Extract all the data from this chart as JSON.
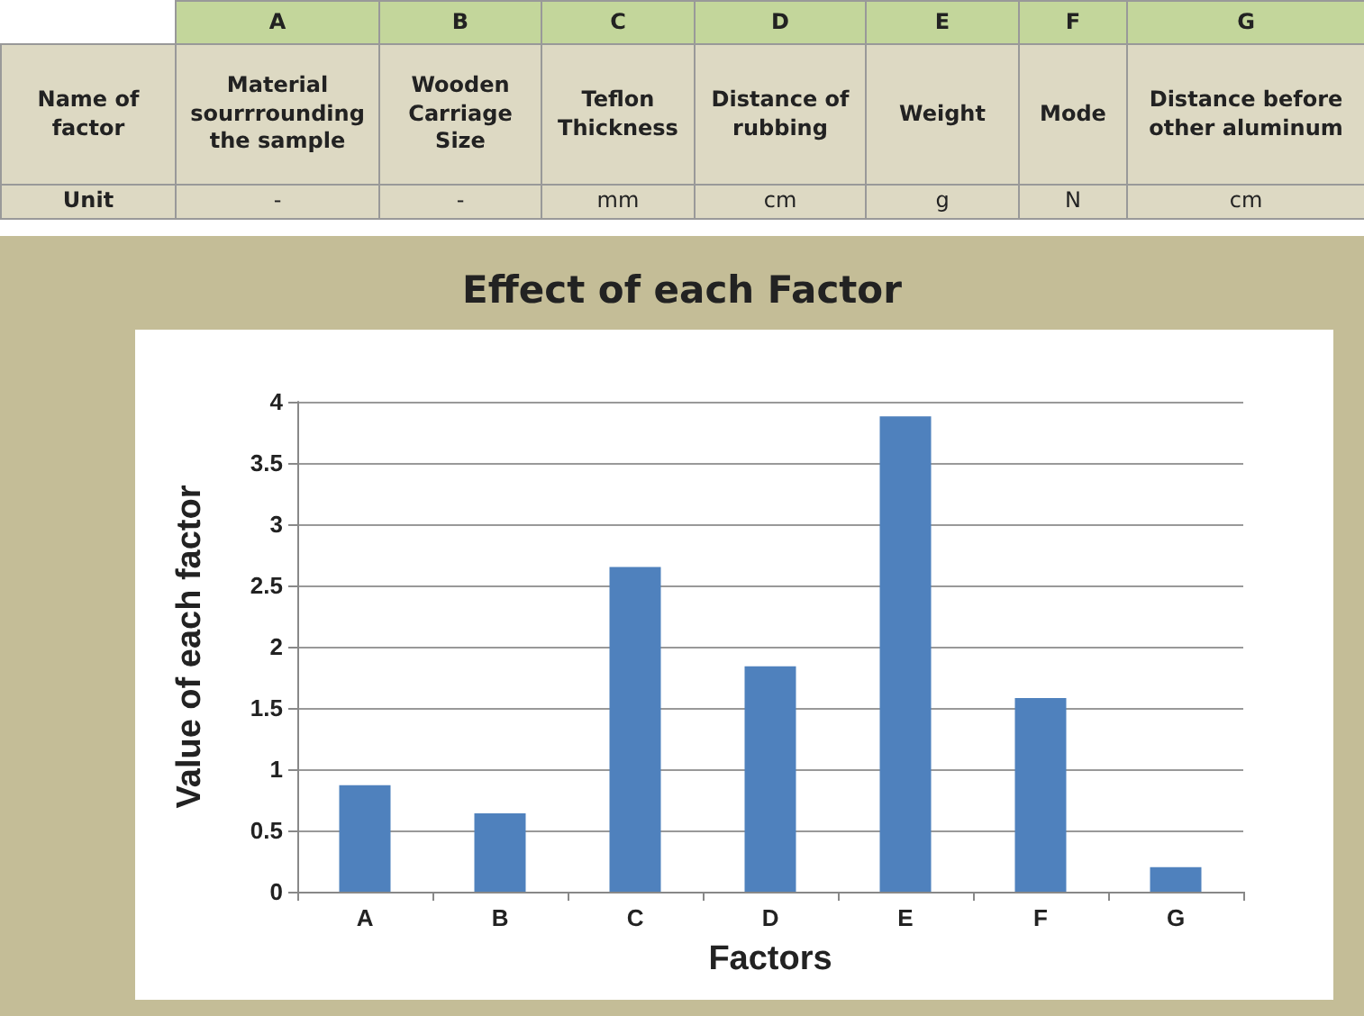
{
  "chart_data": {
    "type": "bar",
    "title": "Effect of each Factor",
    "xlabel": "Factors",
    "ylabel": "Value of each factor",
    "categories": [
      "A",
      "B",
      "C",
      "D",
      "E",
      "F",
      "G"
    ],
    "values": [
      0.87,
      0.64,
      2.65,
      1.84,
      3.88,
      1.58,
      0.2
    ],
    "color": "#4f81bd",
    "ylim": [
      0,
      4
    ],
    "yticks": [
      0,
      0.5,
      1,
      1.5,
      2,
      2.5,
      3,
      3.5,
      4
    ],
    "grid": "y",
    "annotations": [
      "Name of factor",
      "Material sourrrounding the sample",
      "Wooden Carriage Size",
      "Teflon Thickness",
      "Distance of rubbing",
      "Weight",
      "Mode",
      "Distance before other aluminum",
      "Unit",
      "-",
      "-",
      "mm",
      "cm",
      "g",
      "N",
      "cm"
    ]
  }
}
